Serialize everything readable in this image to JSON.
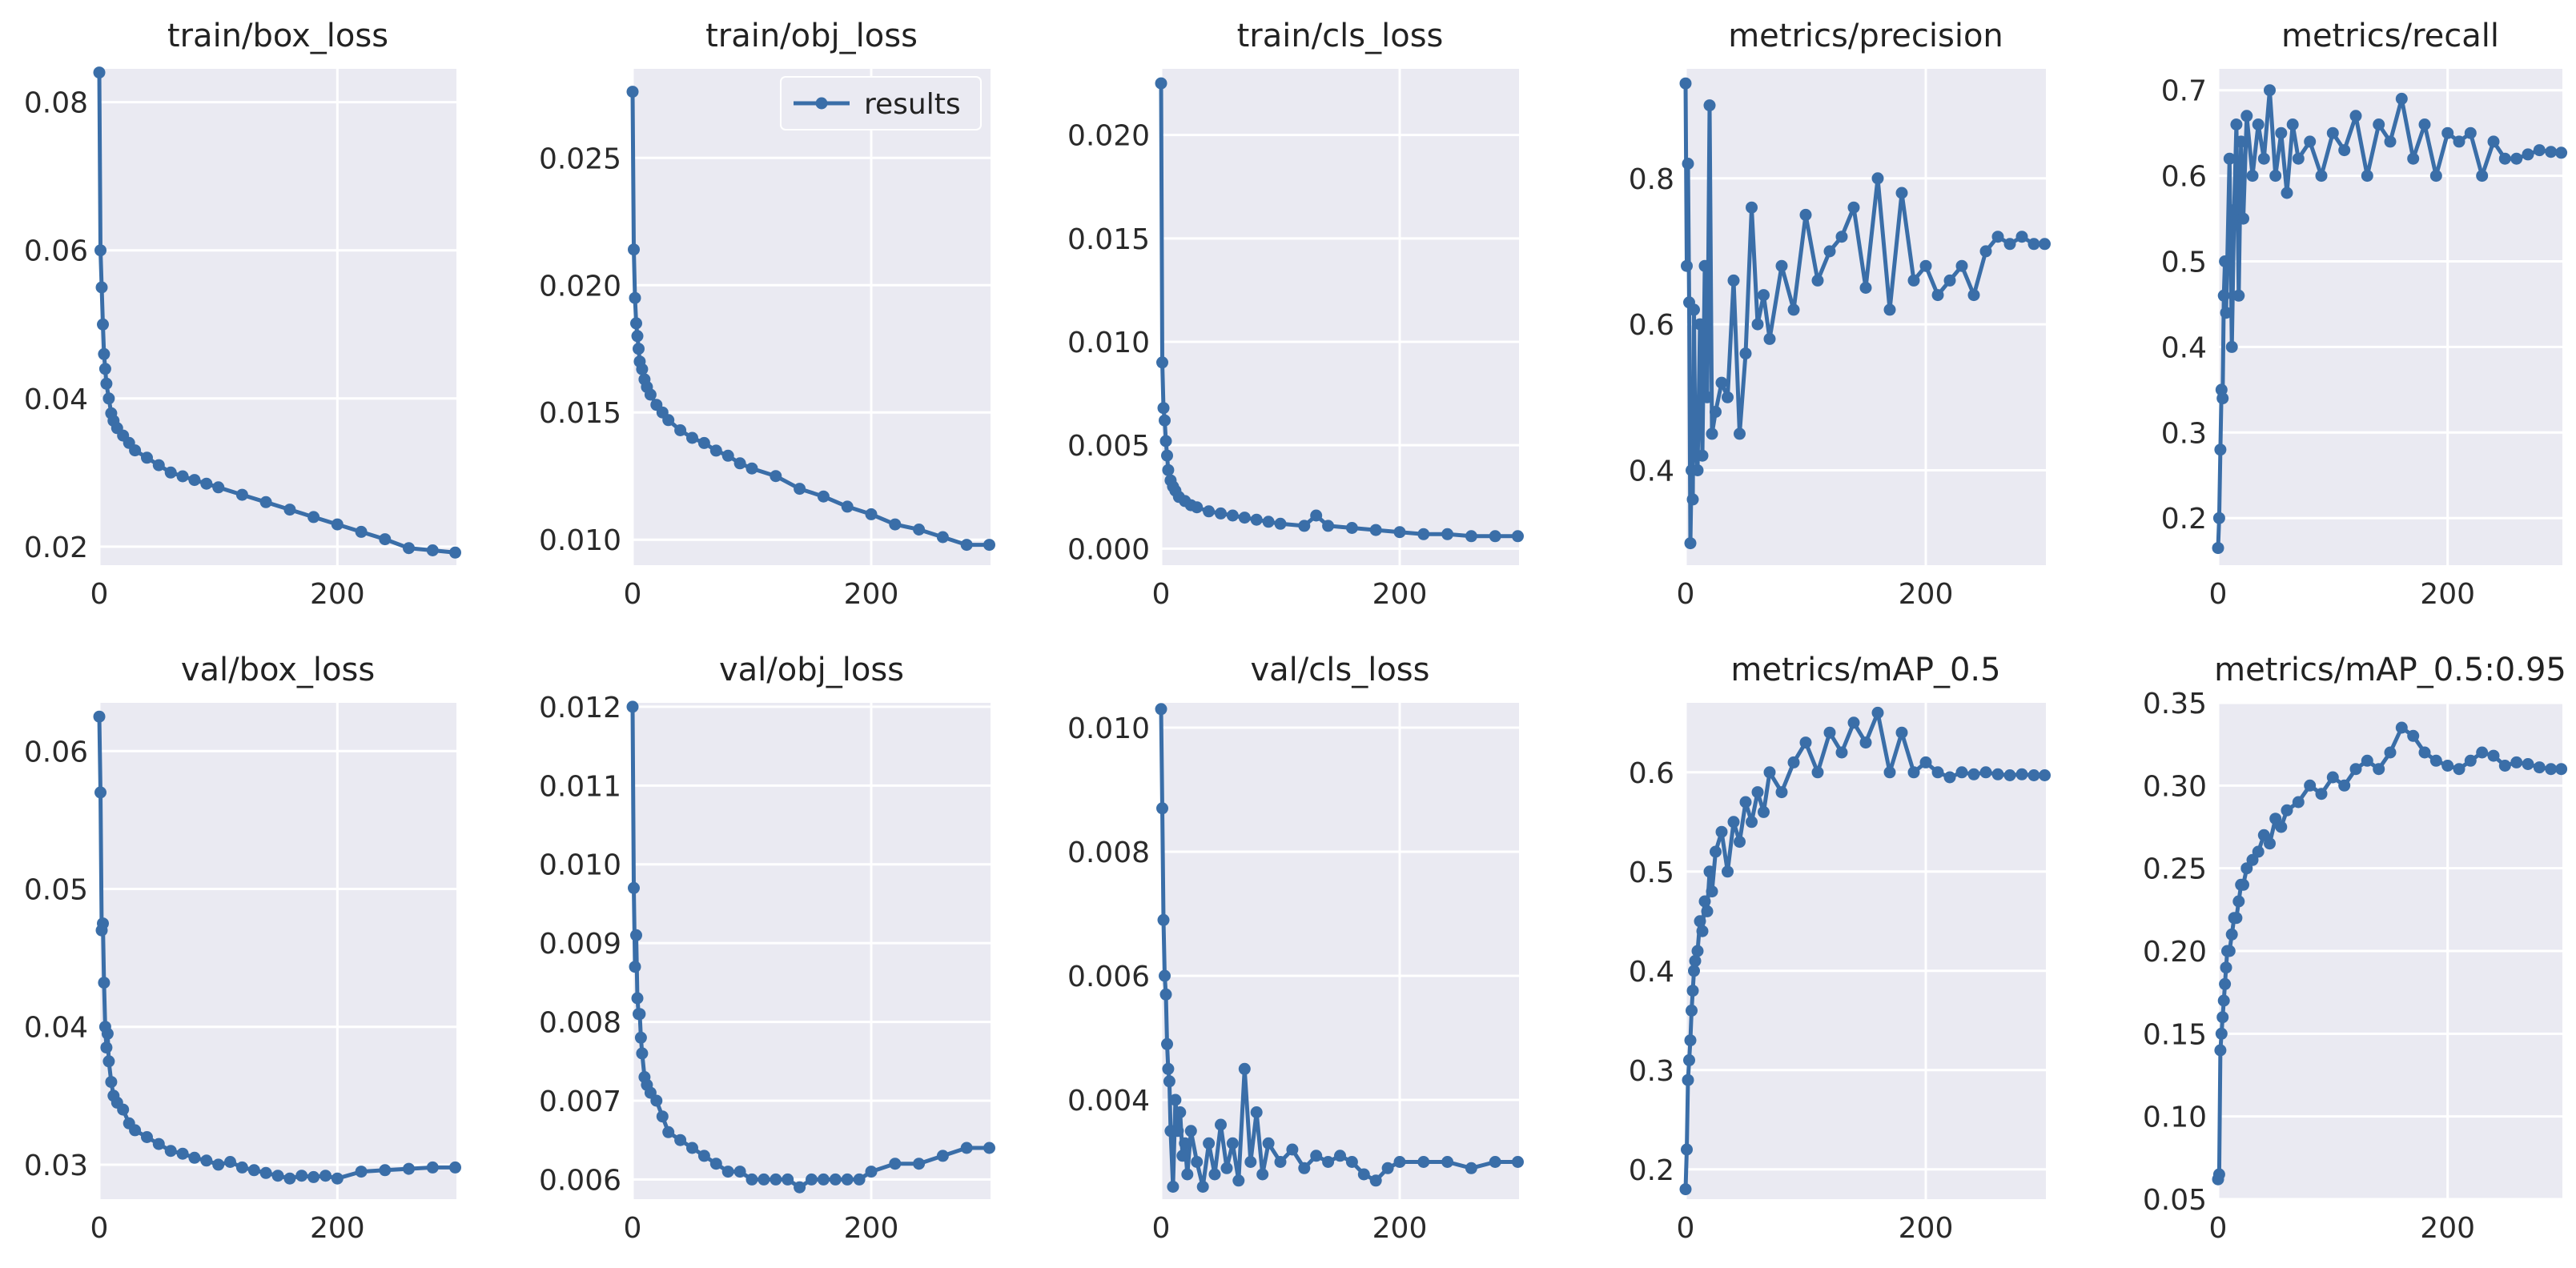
{
  "figure": {
    "line_color": "#3a6ea8",
    "panel_bg": "#eaeaf2",
    "grid_color": "#ffffff"
  },
  "legend": {
    "label": "results"
  },
  "chart_data": [
    {
      "type": "line",
      "title": "train/box_loss",
      "xlim": [
        0,
        300
      ],
      "ylim": [
        0.0175,
        0.0845
      ],
      "xticks": [
        0,
        200
      ],
      "xtick_labels": [
        "0",
        "200"
      ],
      "yticks": [
        0.02,
        0.04,
        0.06,
        0.08
      ],
      "ytick_labels": [
        "0.02",
        "0.04",
        "0.06",
        "0.08"
      ],
      "x": [
        0,
        1,
        2,
        3,
        4,
        5,
        6,
        8,
        10,
        12,
        15,
        20,
        25,
        30,
        40,
        50,
        60,
        70,
        80,
        90,
        100,
        120,
        140,
        160,
        180,
        200,
        220,
        240,
        260,
        280,
        299
      ],
      "y": [
        0.084,
        0.06,
        0.055,
        0.05,
        0.046,
        0.044,
        0.042,
        0.04,
        0.038,
        0.037,
        0.036,
        0.035,
        0.034,
        0.033,
        0.032,
        0.031,
        0.03,
        0.0295,
        0.029,
        0.0285,
        0.028,
        0.027,
        0.026,
        0.025,
        0.024,
        0.023,
        0.022,
        0.021,
        0.0198,
        0.0195,
        0.0192
      ]
    },
    {
      "type": "line",
      "title": "train/obj_loss",
      "xlim": [
        0,
        300
      ],
      "ylim": [
        0.009,
        0.0285
      ],
      "xticks": [
        0,
        200
      ],
      "xtick_labels": [
        "0",
        "200"
      ],
      "yticks": [
        0.01,
        0.015,
        0.02,
        0.025
      ],
      "ytick_labels": [
        "0.010",
        "0.015",
        "0.020",
        "0.025"
      ],
      "show_legend": true,
      "x": [
        0,
        1,
        2,
        3,
        4,
        5,
        6,
        8,
        10,
        12,
        15,
        20,
        25,
        30,
        40,
        50,
        60,
        70,
        80,
        90,
        100,
        120,
        140,
        160,
        180,
        200,
        220,
        240,
        260,
        280,
        299
      ],
      "y": [
        0.0276,
        0.0214,
        0.0195,
        0.0185,
        0.018,
        0.0175,
        0.017,
        0.0167,
        0.0163,
        0.016,
        0.0157,
        0.0153,
        0.015,
        0.0147,
        0.0143,
        0.014,
        0.0138,
        0.0135,
        0.0133,
        0.013,
        0.0128,
        0.0125,
        0.012,
        0.0117,
        0.0113,
        0.011,
        0.0106,
        0.0104,
        0.0101,
        0.0098,
        0.0098
      ]
    },
    {
      "type": "line",
      "title": "train/cls_loss",
      "xlim": [
        0,
        300
      ],
      "ylim": [
        -0.0008,
        0.0232
      ],
      "xticks": [
        0,
        200
      ],
      "xtick_labels": [
        "0",
        "200"
      ],
      "yticks": [
        0,
        0.005,
        0.01,
        0.015,
        0.02
      ],
      "ytick_labels": [
        "0.000",
        "0.005",
        "0.010",
        "0.015",
        "0.020"
      ],
      "x": [
        0,
        1,
        2,
        3,
        4,
        5,
        6,
        8,
        10,
        12,
        15,
        20,
        25,
        30,
        40,
        50,
        60,
        70,
        80,
        90,
        100,
        120,
        130,
        140,
        160,
        180,
        200,
        220,
        240,
        260,
        280,
        299
      ],
      "y": [
        0.0225,
        0.009,
        0.0068,
        0.0062,
        0.0052,
        0.0045,
        0.0038,
        0.0033,
        0.003,
        0.0028,
        0.0025,
        0.0023,
        0.0021,
        0.002,
        0.0018,
        0.0017,
        0.0016,
        0.0015,
        0.0014,
        0.0013,
        0.0012,
        0.0011,
        0.0016,
        0.0011,
        0.001,
        0.0009,
        0.0008,
        0.0007,
        0.0007,
        0.0006,
        0.0006,
        0.0006
      ]
    },
    {
      "type": "line",
      "title": "metrics/precision",
      "xlim": [
        0,
        300
      ],
      "ylim": [
        0.27,
        0.95
      ],
      "xticks": [
        0,
        200
      ],
      "xtick_labels": [
        "0",
        "200"
      ],
      "yticks": [
        0.4,
        0.6,
        0.8
      ],
      "ytick_labels": [
        "0.4",
        "0.6",
        "0.8"
      ],
      "x": [
        0,
        1,
        2,
        3,
        4,
        5,
        6,
        7,
        8,
        10,
        12,
        14,
        16,
        18,
        20,
        22,
        25,
        30,
        35,
        40,
        45,
        50,
        55,
        60,
        65,
        70,
        80,
        90,
        100,
        110,
        120,
        130,
        140,
        150,
        160,
        170,
        180,
        190,
        200,
        210,
        220,
        230,
        240,
        250,
        260,
        270,
        280,
        290,
        299
      ],
      "y": [
        0.93,
        0.68,
        0.82,
        0.63,
        0.3,
        0.4,
        0.36,
        0.62,
        0.45,
        0.4,
        0.6,
        0.42,
        0.68,
        0.5,
        0.9,
        0.45,
        0.48,
        0.52,
        0.5,
        0.66,
        0.45,
        0.56,
        0.76,
        0.6,
        0.64,
        0.58,
        0.68,
        0.62,
        0.75,
        0.66,
        0.7,
        0.72,
        0.76,
        0.65,
        0.8,
        0.62,
        0.78,
        0.66,
        0.68,
        0.64,
        0.66,
        0.68,
        0.64,
        0.7,
        0.72,
        0.71,
        0.72,
        0.71,
        0.71
      ]
    },
    {
      "type": "line",
      "title": "metrics/recall",
      "xlim": [
        0,
        300
      ],
      "ylim": [
        0.145,
        0.725
      ],
      "xticks": [
        0,
        200
      ],
      "xtick_labels": [
        "0",
        "200"
      ],
      "yticks": [
        0.2,
        0.3,
        0.4,
        0.5,
        0.6,
        0.7
      ],
      "ytick_labels": [
        "0.2",
        "0.3",
        "0.4",
        "0.5",
        "0.6",
        "0.7"
      ],
      "x": [
        0,
        1,
        2,
        3,
        4,
        5,
        6,
        7,
        8,
        10,
        12,
        14,
        16,
        18,
        20,
        22,
        25,
        30,
        35,
        40,
        45,
        50,
        55,
        60,
        65,
        70,
        80,
        90,
        100,
        110,
        120,
        130,
        140,
        150,
        160,
        170,
        180,
        190,
        200,
        210,
        220,
        230,
        240,
        250,
        260,
        270,
        280,
        290,
        299
      ],
      "y": [
        0.165,
        0.2,
        0.28,
        0.35,
        0.34,
        0.46,
        0.5,
        0.44,
        0.5,
        0.62,
        0.4,
        0.56,
        0.66,
        0.46,
        0.64,
        0.55,
        0.67,
        0.6,
        0.66,
        0.62,
        0.7,
        0.6,
        0.65,
        0.58,
        0.66,
        0.62,
        0.64,
        0.6,
        0.65,
        0.63,
        0.67,
        0.6,
        0.66,
        0.64,
        0.69,
        0.62,
        0.66,
        0.6,
        0.65,
        0.64,
        0.65,
        0.6,
        0.64,
        0.62,
        0.62,
        0.625,
        0.63,
        0.628,
        0.627
      ]
    },
    {
      "type": "line",
      "title": "val/box_loss",
      "xlim": [
        0,
        300
      ],
      "ylim": [
        0.0275,
        0.0635
      ],
      "xticks": [
        0,
        200
      ],
      "xtick_labels": [
        "0",
        "200"
      ],
      "yticks": [
        0.03,
        0.04,
        0.05,
        0.06
      ],
      "ytick_labels": [
        "0.03",
        "0.04",
        "0.05",
        "0.06"
      ],
      "x": [
        0,
        1,
        2,
        3,
        4,
        5,
        6,
        7,
        8,
        10,
        12,
        15,
        20,
        25,
        30,
        40,
        50,
        60,
        70,
        80,
        90,
        100,
        110,
        120,
        130,
        140,
        150,
        160,
        170,
        180,
        190,
        200,
        220,
        240,
        260,
        280,
        299
      ],
      "y": [
        0.0625,
        0.057,
        0.047,
        0.0475,
        0.0432,
        0.04,
        0.0385,
        0.0395,
        0.0375,
        0.036,
        0.035,
        0.0345,
        0.034,
        0.033,
        0.0325,
        0.032,
        0.0315,
        0.031,
        0.0308,
        0.0305,
        0.0303,
        0.03,
        0.0302,
        0.0298,
        0.0296,
        0.0294,
        0.0292,
        0.029,
        0.0292,
        0.0291,
        0.0292,
        0.029,
        0.0295,
        0.0296,
        0.0297,
        0.0298,
        0.0298
      ]
    },
    {
      "type": "line",
      "title": "val/obj_loss",
      "xlim": [
        0,
        300
      ],
      "ylim": [
        0.00575,
        0.01205
      ],
      "xticks": [
        0,
        200
      ],
      "xtick_labels": [
        "0",
        "200"
      ],
      "yticks": [
        0.006,
        0.007,
        0.008,
        0.009,
        0.01,
        0.011,
        0.012
      ],
      "ytick_labels": [
        "0.006",
        "0.007",
        "0.008",
        "0.009",
        "0.010",
        "0.011",
        "0.012"
      ],
      "x": [
        0,
        1,
        2,
        3,
        4,
        5,
        6,
        7,
        8,
        10,
        12,
        15,
        20,
        25,
        30,
        40,
        50,
        60,
        70,
        80,
        90,
        100,
        110,
        120,
        130,
        140,
        150,
        160,
        170,
        180,
        190,
        200,
        220,
        240,
        260,
        280,
        299
      ],
      "y": [
        0.012,
        0.0097,
        0.0087,
        0.0091,
        0.0083,
        0.0081,
        0.0081,
        0.0078,
        0.0076,
        0.0073,
        0.0072,
        0.0071,
        0.007,
        0.0068,
        0.0066,
        0.0065,
        0.0064,
        0.0063,
        0.0062,
        0.0061,
        0.0061,
        0.006,
        0.006,
        0.006,
        0.006,
        0.0059,
        0.006,
        0.006,
        0.006,
        0.006,
        0.006,
        0.0061,
        0.0062,
        0.0062,
        0.0063,
        0.0064,
        0.0064
      ]
    },
    {
      "type": "line",
      "title": "val/cls_loss",
      "xlim": [
        0,
        300
      ],
      "ylim": [
        0.0024,
        0.0104
      ],
      "xticks": [
        0,
        200
      ],
      "xtick_labels": [
        "0",
        "200"
      ],
      "yticks": [
        0.004,
        0.006,
        0.008,
        0.01
      ],
      "ytick_labels": [
        "0.004",
        "0.006",
        "0.008",
        "0.010"
      ],
      "x": [
        0,
        1,
        2,
        3,
        4,
        5,
        6,
        7,
        8,
        10,
        12,
        14,
        16,
        18,
        20,
        22,
        25,
        30,
        35,
        40,
        45,
        50,
        55,
        60,
        65,
        70,
        75,
        80,
        85,
        90,
        100,
        110,
        120,
        130,
        140,
        150,
        160,
        170,
        180,
        190,
        200,
        220,
        240,
        260,
        280,
        299
      ],
      "y": [
        0.0103,
        0.0087,
        0.0069,
        0.006,
        0.0057,
        0.0049,
        0.0045,
        0.0043,
        0.0035,
        0.0026,
        0.004,
        0.0035,
        0.0038,
        0.0031,
        0.0033,
        0.0028,
        0.0035,
        0.003,
        0.0026,
        0.0033,
        0.0028,
        0.0036,
        0.0029,
        0.0033,
        0.0027,
        0.0045,
        0.003,
        0.0038,
        0.0028,
        0.0033,
        0.003,
        0.0032,
        0.0029,
        0.0031,
        0.003,
        0.0031,
        0.003,
        0.0028,
        0.0027,
        0.0029,
        0.003,
        0.003,
        0.003,
        0.0029,
        0.003,
        0.003
      ]
    },
    {
      "type": "line",
      "title": "metrics/mAP_0.5",
      "xlim": [
        0,
        300
      ],
      "ylim": [
        0.17,
        0.67
      ],
      "xticks": [
        0,
        200
      ],
      "xtick_labels": [
        "0",
        "200"
      ],
      "yticks": [
        0.2,
        0.3,
        0.4,
        0.5,
        0.6
      ],
      "ytick_labels": [
        "0.2",
        "0.3",
        "0.4",
        "0.5",
        "0.6"
      ],
      "x": [
        0,
        1,
        2,
        3,
        4,
        5,
        6,
        7,
        8,
        10,
        12,
        14,
        16,
        18,
        20,
        22,
        25,
        30,
        35,
        40,
        45,
        50,
        55,
        60,
        65,
        70,
        80,
        90,
        100,
        110,
        120,
        130,
        140,
        150,
        160,
        170,
        180,
        190,
        200,
        210,
        220,
        230,
        240,
        250,
        260,
        270,
        280,
        290,
        299
      ],
      "y": [
        0.18,
        0.22,
        0.29,
        0.31,
        0.33,
        0.36,
        0.38,
        0.4,
        0.41,
        0.42,
        0.45,
        0.44,
        0.47,
        0.46,
        0.5,
        0.48,
        0.52,
        0.54,
        0.5,
        0.55,
        0.53,
        0.57,
        0.55,
        0.58,
        0.56,
        0.6,
        0.58,
        0.61,
        0.63,
        0.6,
        0.64,
        0.62,
        0.65,
        0.63,
        0.66,
        0.6,
        0.64,
        0.6,
        0.61,
        0.6,
        0.595,
        0.6,
        0.598,
        0.6,
        0.598,
        0.597,
        0.598,
        0.597,
        0.597
      ]
    },
    {
      "type": "line",
      "title": "metrics/mAP_0.5:0.95",
      "xlim": [
        0,
        300
      ],
      "ylim": [
        0.05,
        0.35
      ],
      "xticks": [
        0,
        200
      ],
      "xtick_labels": [
        "0",
        "200"
      ],
      "yticks": [
        0.05,
        0.1,
        0.15,
        0.2,
        0.25,
        0.3,
        0.35
      ],
      "ytick_labels": [
        "0.05",
        "0.10",
        "0.15",
        "0.20",
        "0.25",
        "0.30",
        "0.35"
      ],
      "x": [
        0,
        1,
        2,
        3,
        4,
        5,
        6,
        7,
        8,
        10,
        12,
        14,
        16,
        18,
        20,
        22,
        25,
        30,
        35,
        40,
        45,
        50,
        55,
        60,
        70,
        80,
        90,
        100,
        110,
        120,
        130,
        140,
        150,
        160,
        170,
        180,
        190,
        200,
        210,
        220,
        230,
        240,
        250,
        260,
        270,
        280,
        290,
        299
      ],
      "y": [
        0.062,
        0.065,
        0.14,
        0.15,
        0.16,
        0.17,
        0.18,
        0.19,
        0.2,
        0.2,
        0.21,
        0.22,
        0.22,
        0.23,
        0.24,
        0.24,
        0.25,
        0.255,
        0.26,
        0.27,
        0.265,
        0.28,
        0.275,
        0.285,
        0.29,
        0.3,
        0.295,
        0.305,
        0.3,
        0.31,
        0.315,
        0.31,
        0.32,
        0.335,
        0.33,
        0.32,
        0.315,
        0.312,
        0.31,
        0.315,
        0.32,
        0.318,
        0.312,
        0.314,
        0.313,
        0.311,
        0.31,
        0.31
      ]
    }
  ]
}
